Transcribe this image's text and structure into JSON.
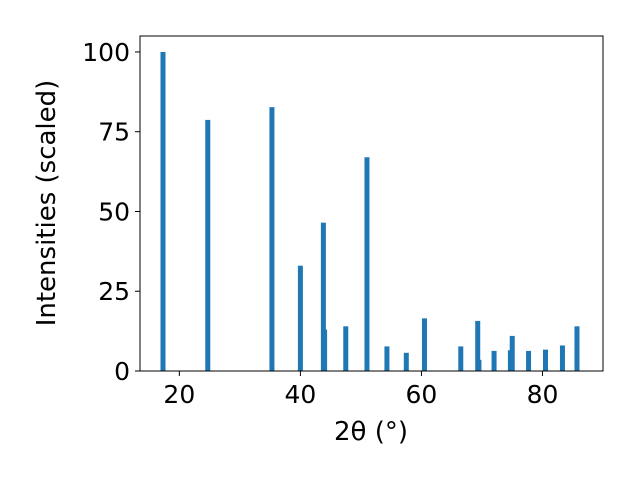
{
  "chart_data": {
    "type": "bar",
    "xlabel": "2θ (°)",
    "ylabel": "Intensities (scaled)",
    "xlim": [
      13.5,
      90
    ],
    "ylim": [
      0,
      105
    ],
    "xticks": [
      20,
      40,
      60,
      80
    ],
    "yticks": [
      0,
      25,
      50,
      75,
      100
    ],
    "bar_color": "#1f77b4",
    "grid": false,
    "series": [
      {
        "x": [
          17.3,
          24.7,
          35.3,
          40.0,
          43.8,
          44.0,
          47.5,
          51.0,
          54.3,
          57.5,
          60.5,
          66.5,
          69.3,
          69.5,
          72.0,
          74.7,
          75.0,
          77.7,
          80.5,
          83.3,
          85.7
        ],
        "values": [
          100,
          78.7,
          82.7,
          33.0,
          46.5,
          13.0,
          14.0,
          67.0,
          7.7,
          5.7,
          16.5,
          7.7,
          15.7,
          3.5,
          6.3,
          6.5,
          11.0,
          6.3,
          6.7,
          8.0,
          14.0
        ]
      }
    ]
  }
}
